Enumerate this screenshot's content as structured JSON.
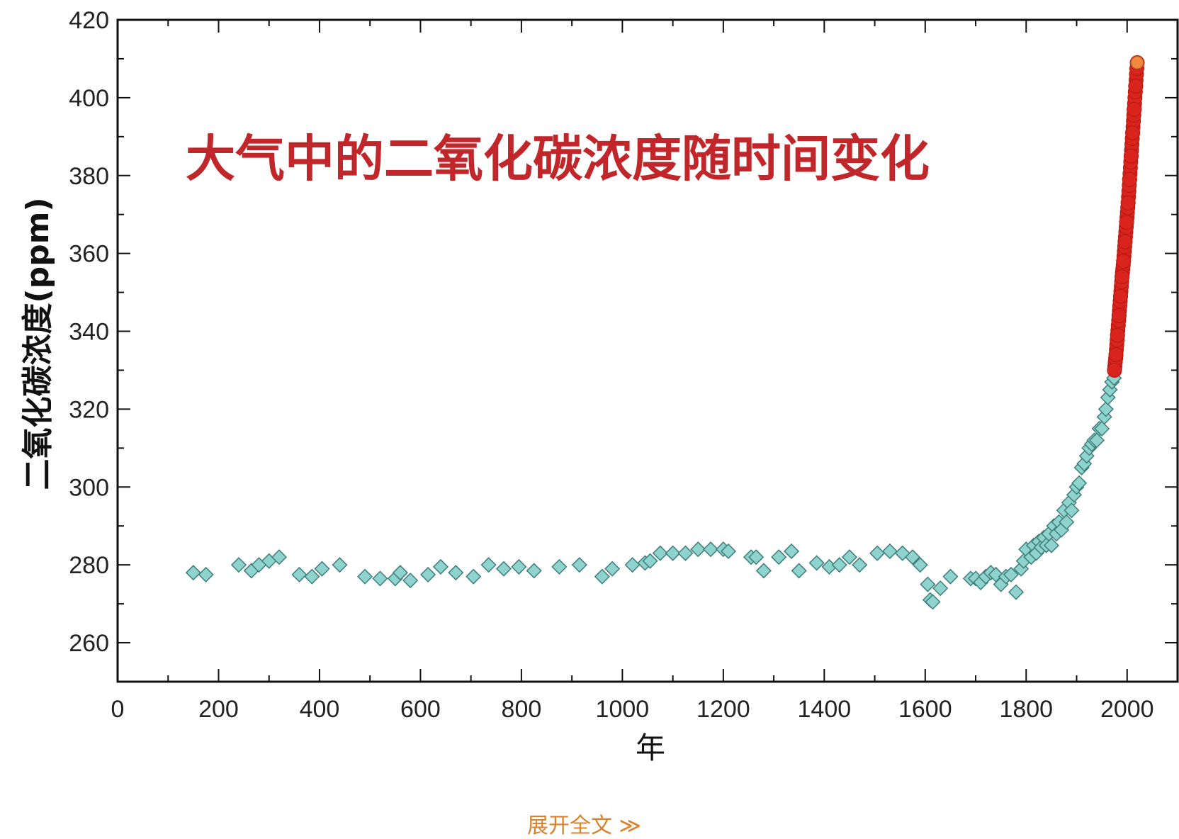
{
  "chart_data": {
    "type": "scatter",
    "annotation": "大气中的二氧化碳浓度随时间变化",
    "xlabel": "年",
    "ylabel": "二氧化碳浓度(ppm)",
    "xlim": [
      0,
      2100
    ],
    "ylim": [
      250,
      420
    ],
    "xticks": [
      0,
      200,
      400,
      600,
      800,
      1000,
      1200,
      1400,
      1600,
      1800,
      2000
    ],
    "yticks": [
      260,
      280,
      300,
      320,
      340,
      360,
      380,
      400,
      420
    ],
    "grid": false,
    "colors": {
      "ice_core": "#8fd3cf",
      "ice_core_edge": "#3f7f7b",
      "instrumental": "#d8241c",
      "axis": "#111111"
    },
    "series": [
      {
        "marker": "diamond",
        "x": [
          150,
          175,
          240,
          265,
          280,
          300,
          320,
          360,
          385,
          405,
          440,
          490,
          520,
          550,
          560,
          580,
          615,
          640,
          670,
          705,
          735,
          765,
          795,
          825,
          875,
          915,
          960,
          980,
          1020,
          1045,
          1055,
          1075,
          1100,
          1125,
          1150,
          1175,
          1200,
          1210,
          1255,
          1265,
          1280,
          1310,
          1335,
          1350,
          1385,
          1410,
          1430,
          1450,
          1470,
          1505,
          1530,
          1555,
          1575,
          1590,
          1605,
          1610,
          1615,
          1630,
          1650,
          1690,
          1700,
          1710,
          1720,
          1730,
          1740,
          1750,
          1760,
          1770,
          1780,
          1790,
          1795,
          1800,
          1810,
          1815,
          1820,
          1825,
          1830,
          1835,
          1840,
          1845,
          1850,
          1855,
          1860,
          1865,
          1870,
          1875,
          1880,
          1885,
          1890,
          1895,
          1900,
          1905,
          1910,
          1915,
          1920,
          1925,
          1930,
          1935,
          1940,
          1945,
          1950,
          1955,
          1958,
          1962,
          1966,
          1970,
          1974
        ],
        "y": [
          278,
          277.5,
          280,
          278.5,
          280,
          281,
          282,
          277.5,
          277,
          279,
          280,
          277,
          276.5,
          276.5,
          278,
          276,
          277.5,
          279.5,
          278,
          277,
          280,
          279,
          279.5,
          278.5,
          279.5,
          280,
          277,
          279,
          280,
          280.5,
          281,
          283,
          283,
          283,
          284,
          284,
          284,
          283.5,
          282,
          282,
          278.5,
          282,
          283.5,
          278.5,
          280.5,
          279.5,
          280,
          282,
          280,
          283,
          283.5,
          283,
          282,
          280,
          275,
          271,
          270.5,
          274,
          277,
          276.5,
          276.5,
          275.5,
          277,
          278,
          277.5,
          275,
          277,
          277.5,
          273,
          279,
          281,
          284,
          282,
          285,
          283,
          286,
          284.5,
          287,
          285,
          288,
          285,
          290,
          288,
          291,
          289,
          294,
          291,
          296,
          294,
          298,
          300,
          301,
          305,
          306,
          308,
          310,
          311,
          312,
          312,
          315,
          315,
          318,
          320,
          323,
          325,
          327,
          328
        ]
      },
      {
        "marker": "circle",
        "x": [
          1975,
          1978,
          1981,
          1984,
          1987,
          1990,
          1993,
          1996,
          1999,
          2002,
          2005,
          2008,
          2011,
          2014,
          2017,
          2020
        ],
        "y": [
          330,
          334,
          339,
          344,
          349,
          354,
          358,
          363,
          368,
          373,
          379,
          385,
          391,
          397,
          403,
          409
        ]
      }
    ]
  },
  "footer": {
    "expand_label": "展开全文 ≫"
  }
}
